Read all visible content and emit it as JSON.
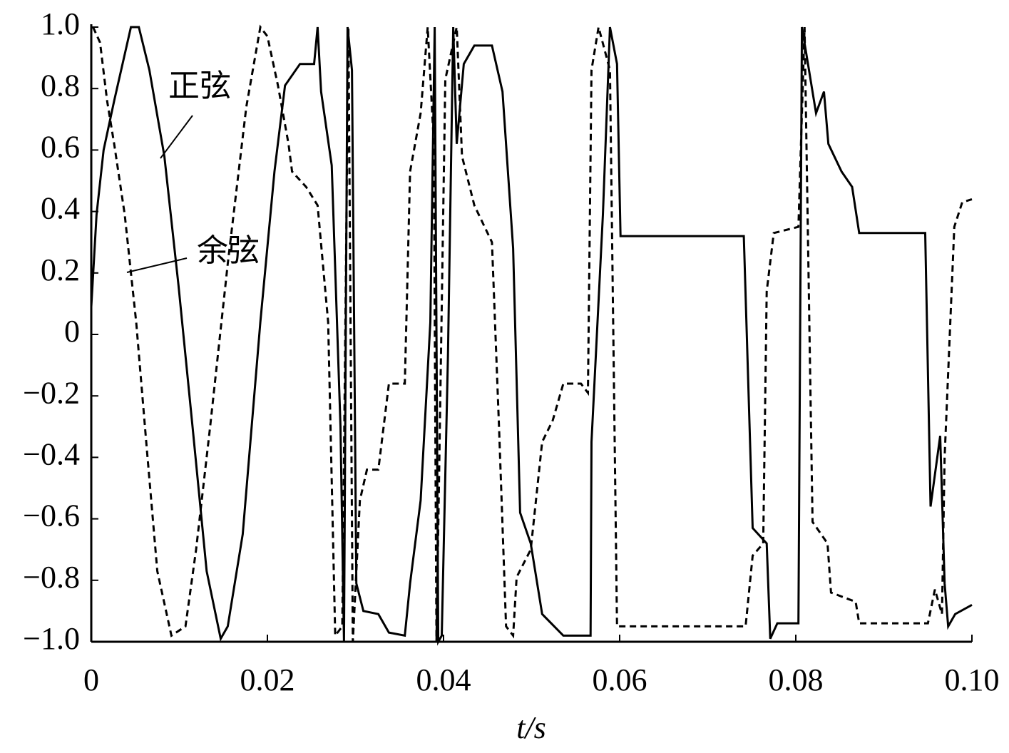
{
  "chart_data": {
    "type": "line",
    "xlabel": "t/s",
    "xlim": [
      0,
      0.1
    ],
    "ylim": [
      -1,
      1
    ],
    "xticks": [
      0,
      0.02,
      0.04,
      0.06,
      0.08,
      {
        "value": 0.1,
        "label": "0.10"
      }
    ],
    "yticks": [
      {
        "value": -1,
        "label": "−1.0"
      },
      {
        "value": -0.8,
        "label": "−0.8"
      },
      {
        "value": -0.6,
        "label": "−0.6"
      },
      {
        "value": -0.4,
        "label": "−0.4"
      },
      {
        "value": -0.2,
        "label": "−0.2"
      },
      0,
      0.2,
      0.4,
      0.6,
      0.8,
      {
        "value": 1,
        "label": "1.0"
      }
    ],
    "series": [
      {
        "name": "正弦",
        "color": "#000000",
        "style": "solid",
        "x": [
          0,
          0.0006,
          0.0014,
          0.0026,
          0.0045,
          0.0054,
          0.0066,
          0.0083,
          0.0099,
          0.0115,
          0.0131,
          0.0147,
          0.0155,
          0.0172,
          0.0192,
          0.0208,
          0.022,
          0.0237,
          0.0253,
          0.0257,
          0.0261,
          0.0273,
          0.0283,
          0.0287,
          0.0291,
          0.0296,
          0.0301,
          0.0309,
          0.0326,
          0.0338,
          0.0356,
          0.0362,
          0.0374,
          0.0385,
          0.039,
          0.0394,
          0.0398,
          0.0405,
          0.0411,
          0.0415,
          0.0423,
          0.0435,
          0.0455,
          0.0467,
          0.0479,
          0.0487,
          0.0499,
          0.0512,
          0.0536,
          0.0567,
          0.0568,
          0.0581,
          0.0589,
          0.0597,
          0.0601,
          0.0741,
          0.0751,
          0.0767,
          0.0771,
          0.0779,
          0.0803,
          0.0807,
          0.0815,
          0.0823,
          0.0832,
          0.0837,
          0.0852,
          0.0864,
          0.0872,
          0.0947,
          0.0953,
          0.0964,
          0.0969,
          0.0973,
          0.0981,
          0.1
        ],
        "values": [
          0.09,
          0.39,
          0.6,
          0.76,
          1.0,
          1.0,
          0.86,
          0.58,
          0.16,
          -0.3,
          -0.77,
          -0.99,
          -0.95,
          -0.65,
          0.04,
          0.53,
          0.81,
          0.88,
          0.88,
          1.0,
          0.79,
          0.55,
          -0.3,
          -1.0,
          1.0,
          0.86,
          -0.81,
          -0.9,
          -0.91,
          -0.97,
          -0.98,
          -0.81,
          -0.54,
          0.04,
          1.0,
          -1.0,
          -0.98,
          -0.07,
          1.0,
          0.62,
          0.88,
          0.94,
          0.94,
          0.79,
          0.28,
          -0.58,
          -0.68,
          -0.91,
          -0.98,
          -0.98,
          -0.35,
          0.39,
          1.0,
          0.88,
          0.32,
          0.32,
          -0.63,
          -0.68,
          -0.99,
          -0.94,
          -0.94,
          1.0,
          0.86,
          0.72,
          0.79,
          0.62,
          0.53,
          0.48,
          0.33,
          0.33,
          -0.56,
          -0.33,
          -0.81,
          -0.95,
          -0.91,
          -0.88
        ]
      },
      {
        "name": "余弦",
        "color": "#000000",
        "style": "dashed",
        "x": [
          0.0002,
          0.001,
          0.0018,
          0.0026,
          0.0038,
          0.0051,
          0.0063,
          0.0075,
          0.0091,
          0.0107,
          0.0119,
          0.0135,
          0.0155,
          0.0176,
          0.0192,
          0.02,
          0.0212,
          0.0224,
          0.0228,
          0.0244,
          0.0257,
          0.0269,
          0.0277,
          0.0285,
          0.0292,
          0.0297,
          0.0305,
          0.0313,
          0.0326,
          0.0338,
          0.0356,
          0.0362,
          0.0374,
          0.0382,
          0.0389,
          0.0392,
          0.0402,
          0.0415,
          0.0421,
          0.0435,
          0.0455,
          0.0463,
          0.0471,
          0.0479,
          0.0483,
          0.0499,
          0.0512,
          0.0524,
          0.0536,
          0.0556,
          0.0564,
          0.0568,
          0.0576,
          0.0589,
          0.0597,
          0.0743,
          0.0751,
          0.0763,
          0.0767,
          0.0775,
          0.0803,
          0.081,
          0.0819,
          0.0836,
          0.084,
          0.0868,
          0.0872,
          0.095,
          0.0958,
          0.0966,
          0.0969,
          0.098,
          0.0989,
          0.1
        ],
        "values": [
          1.0,
          0.95,
          0.76,
          0.62,
          0.39,
          0.04,
          -0.37,
          -0.77,
          -0.98,
          -0.95,
          -0.7,
          -0.3,
          0.23,
          0.74,
          1.0,
          0.97,
          0.81,
          0.62,
          0.53,
          0.48,
          0.42,
          0.04,
          -0.98,
          -0.95,
          1.0,
          -1.0,
          -0.54,
          -0.44,
          -0.44,
          -0.16,
          -0.16,
          0.53,
          0.72,
          1.0,
          0.62,
          -1.0,
          0.83,
          1.0,
          0.58,
          0.42,
          0.3,
          -0.3,
          -0.95,
          -0.98,
          -0.79,
          -0.7,
          -0.35,
          -0.28,
          -0.16,
          -0.16,
          -0.19,
          0.86,
          1.0,
          0.86,
          -0.95,
          -0.95,
          -0.72,
          -0.68,
          0.14,
          0.33,
          0.35,
          1.0,
          -0.61,
          -0.68,
          -0.84,
          -0.87,
          -0.94,
          -0.94,
          -0.83,
          -0.91,
          -0.4,
          0.35,
          0.43,
          0.44
        ]
      }
    ]
  }
}
